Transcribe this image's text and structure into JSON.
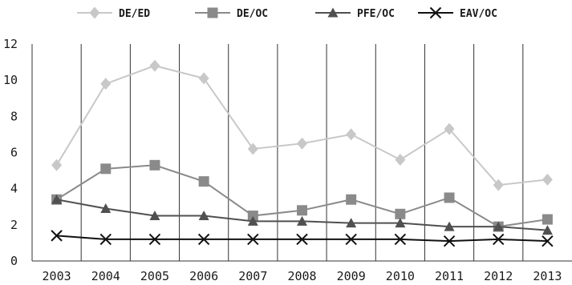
{
  "chart_data": {
    "type": "line",
    "title": "",
    "xlabel": "",
    "ylabel": "",
    "categories": [
      "2003",
      "2004",
      "2005",
      "2006",
      "2007",
      "2008",
      "2009",
      "2010",
      "2011",
      "2012",
      "2013"
    ],
    "ylim": [
      0,
      12
    ],
    "yticks": [
      0,
      2,
      4,
      6,
      8,
      10,
      12
    ],
    "grid": "vertical",
    "legend_position": "top",
    "series": [
      {
        "name": "DE/ED",
        "marker": "diamond",
        "color": "#c8c8c8",
        "values": [
          5.3,
          9.8,
          10.8,
          10.1,
          6.2,
          6.5,
          7.0,
          5.6,
          7.3,
          4.2,
          4.5
        ]
      },
      {
        "name": "DE/OC",
        "marker": "square",
        "color": "#8a8a8a",
        "values": [
          3.4,
          5.1,
          5.3,
          4.4,
          2.5,
          2.8,
          3.4,
          2.6,
          3.5,
          1.9,
          2.3
        ]
      },
      {
        "name": "PFE/OC",
        "marker": "triangle",
        "color": "#505050",
        "values": [
          3.4,
          2.9,
          2.5,
          2.5,
          2.2,
          2.2,
          2.1,
          2.1,
          1.9,
          1.9,
          1.7
        ]
      },
      {
        "name": "EAV/OC",
        "marker": "cross",
        "color": "#111111",
        "values": [
          1.4,
          1.2,
          1.2,
          1.2,
          1.2,
          1.2,
          1.2,
          1.2,
          1.1,
          1.2,
          1.1
        ]
      }
    ]
  }
}
